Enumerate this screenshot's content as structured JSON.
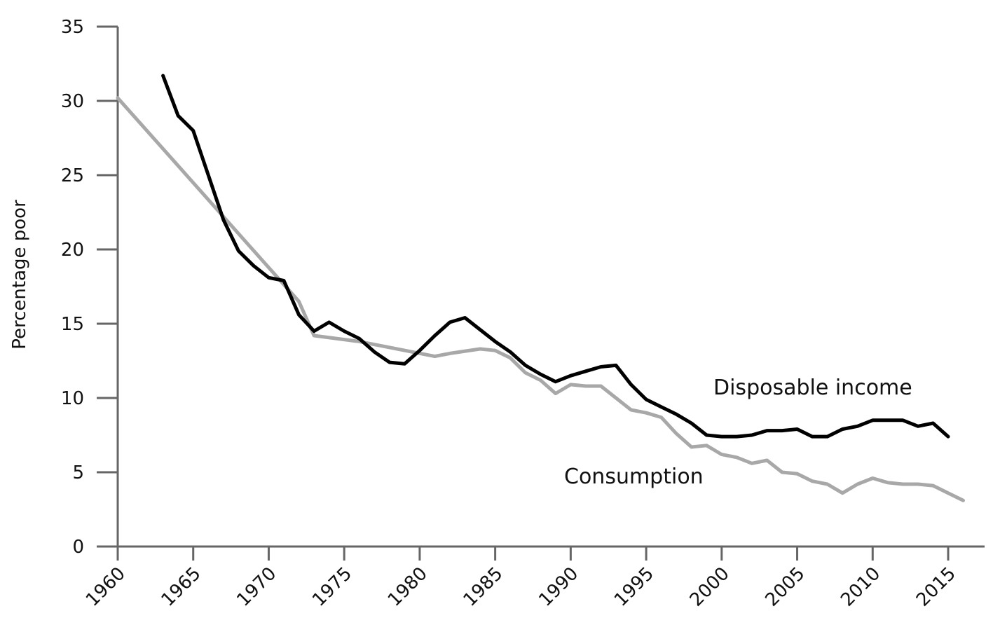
{
  "chart_data": {
    "type": "line",
    "ylabel": "Percentage poor",
    "xlim": [
      1960,
      2017
    ],
    "ylim": [
      0,
      35
    ],
    "x_ticks": [
      1960,
      1965,
      1970,
      1975,
      1980,
      1985,
      1990,
      1995,
      2000,
      2005,
      2010,
      2015
    ],
    "y_ticks": [
      0,
      5,
      10,
      15,
      20,
      25,
      30,
      35
    ],
    "grid": false,
    "legend": "none",
    "series": [
      {
        "name": "Disposable income",
        "color": "#000000",
        "points": [
          [
            1963,
            31.7
          ],
          [
            1964,
            29.0
          ],
          [
            1965,
            28.0
          ],
          [
            1966,
            25.0
          ],
          [
            1967,
            22.0
          ],
          [
            1968,
            19.9
          ],
          [
            1969,
            18.9
          ],
          [
            1970,
            18.1
          ],
          [
            1971,
            17.9
          ],
          [
            1972,
            15.6
          ],
          [
            1973,
            14.5
          ],
          [
            1974,
            15.1
          ],
          [
            1975,
            14.5
          ],
          [
            1976,
            14.0
          ],
          [
            1977,
            13.1
          ],
          [
            1978,
            12.4
          ],
          [
            1979,
            12.3
          ],
          [
            1980,
            13.2
          ],
          [
            1981,
            14.2
          ],
          [
            1982,
            15.1
          ],
          [
            1983,
            15.4
          ],
          [
            1984,
            14.6
          ],
          [
            1985,
            13.8
          ],
          [
            1986,
            13.1
          ],
          [
            1987,
            12.2
          ],
          [
            1988,
            11.6
          ],
          [
            1989,
            11.1
          ],
          [
            1990,
            11.5
          ],
          [
            1991,
            11.8
          ],
          [
            1992,
            12.1
          ],
          [
            1993,
            12.2
          ],
          [
            1994,
            10.9
          ],
          [
            1995,
            9.9
          ],
          [
            1996,
            9.4
          ],
          [
            1997,
            8.9
          ],
          [
            1998,
            8.3
          ],
          [
            1999,
            7.5
          ],
          [
            2000,
            7.4
          ],
          [
            2001,
            7.4
          ],
          [
            2002,
            7.5
          ],
          [
            2003,
            7.8
          ],
          [
            2004,
            7.8
          ],
          [
            2005,
            7.9
          ],
          [
            2006,
            7.4
          ],
          [
            2007,
            7.4
          ],
          [
            2008,
            7.9
          ],
          [
            2009,
            8.1
          ],
          [
            2010,
            8.5
          ],
          [
            2011,
            8.5
          ],
          [
            2012,
            8.5
          ],
          [
            2013,
            8.1
          ],
          [
            2014,
            8.3
          ],
          [
            2015,
            7.4
          ]
        ]
      },
      {
        "name": "Consumption",
        "color": "#a8a8a8",
        "points": [
          [
            1960,
            30.2
          ],
          [
            1972,
            16.5
          ],
          [
            1973,
            14.2
          ],
          [
            1976,
            13.8
          ],
          [
            1981,
            12.8
          ],
          [
            1982,
            13.0
          ],
          [
            1984,
            13.3
          ],
          [
            1985,
            13.2
          ],
          [
            1986,
            12.7
          ],
          [
            1987,
            11.7
          ],
          [
            1988,
            11.2
          ],
          [
            1989,
            10.3
          ],
          [
            1990,
            10.9
          ],
          [
            1991,
            10.8
          ],
          [
            1992,
            10.8
          ],
          [
            1993,
            10.0
          ],
          [
            1994,
            9.2
          ],
          [
            1995,
            9.0
          ],
          [
            1996,
            8.7
          ],
          [
            1997,
            7.6
          ],
          [
            1998,
            6.7
          ],
          [
            1999,
            6.8
          ],
          [
            2000,
            6.2
          ],
          [
            2001,
            6.0
          ],
          [
            2002,
            5.6
          ],
          [
            2003,
            5.8
          ],
          [
            2004,
            5.0
          ],
          [
            2005,
            4.9
          ],
          [
            2006,
            4.4
          ],
          [
            2007,
            4.2
          ],
          [
            2008,
            3.6
          ],
          [
            2009,
            4.2
          ],
          [
            2010,
            4.6
          ],
          [
            2011,
            4.3
          ],
          [
            2012,
            4.2
          ],
          [
            2013,
            4.2
          ],
          [
            2014,
            4.1
          ],
          [
            2015,
            3.6
          ],
          [
            2016,
            3.1
          ]
        ]
      }
    ],
    "annotations": [
      {
        "text": "Disposable income",
        "series": "Disposable income"
      },
      {
        "text": "Consumption",
        "series": "Consumption"
      }
    ]
  }
}
